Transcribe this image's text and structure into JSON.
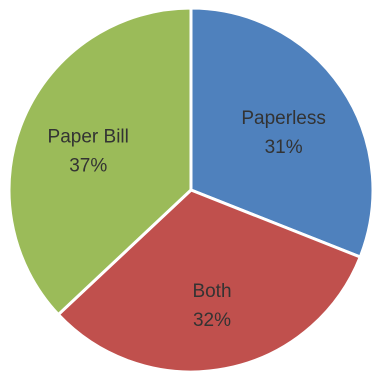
{
  "chart_data": {
    "type": "pie",
    "title": "",
    "start_angle_deg": 0,
    "direction": "clockwise",
    "legend": "none",
    "slices": [
      {
        "label": "Paperless",
        "value": 31,
        "display": "31%",
        "color": "#4f81bd"
      },
      {
        "label": "Both",
        "value": 32,
        "display": "32%",
        "color": "#c0504d"
      },
      {
        "label": "Paper Bill",
        "value": 37,
        "display": "37%",
        "color": "#9bbb59"
      }
    ]
  }
}
